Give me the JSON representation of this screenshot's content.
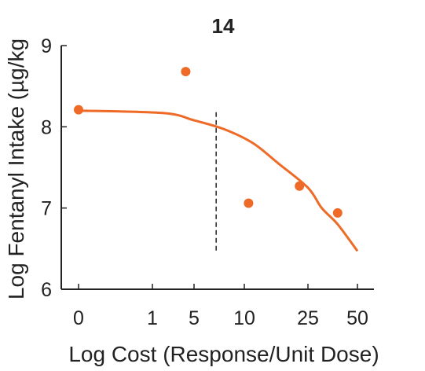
{
  "chart_data": {
    "type": "scatter",
    "title": "14",
    "xlabel": "Log Cost (Response/Unit Dose)",
    "ylabel": "Log Fentanyl Intake (µg/kg",
    "x_ticks": [
      0,
      1,
      5,
      10,
      25,
      50
    ],
    "x_tick_labels": [
      "0",
      "1",
      "5",
      "10",
      "25",
      "50"
    ],
    "y_ticks": [
      6,
      7,
      8,
      9
    ],
    "y_tick_labels": [
      "6",
      "7",
      "8",
      "9"
    ],
    "ylim": [
      6,
      9
    ],
    "points": [
      {
        "x": 0,
        "y": 8.21
      },
      {
        "x": 4.2,
        "y": 8.68
      },
      {
        "x": 11,
        "y": 7.06
      },
      {
        "x": 23,
        "y": 7.27
      },
      {
        "x": 40,
        "y": 6.94
      }
    ],
    "fit_curve": [
      {
        "x": 0,
        "y": 8.2
      },
      {
        "x": 2,
        "y": 8.17
      },
      {
        "x": 5,
        "y": 8.08
      },
      {
        "x": 8,
        "y": 7.97
      },
      {
        "x": 12,
        "y": 7.8
      },
      {
        "x": 18,
        "y": 7.55
      },
      {
        "x": 25,
        "y": 7.25
      },
      {
        "x": 32,
        "y": 7.0
      },
      {
        "x": 40,
        "y": 6.8
      },
      {
        "x": 50,
        "y": 6.47
      }
    ],
    "reference_line": {
      "x": 7.2,
      "y_from": 6.45,
      "y_to": 8.18,
      "style": "dashed"
    },
    "colors": {
      "points": "#EE6A26",
      "fit": "#EE6A26",
      "axis": "#222222",
      "reference": "#222222"
    }
  }
}
